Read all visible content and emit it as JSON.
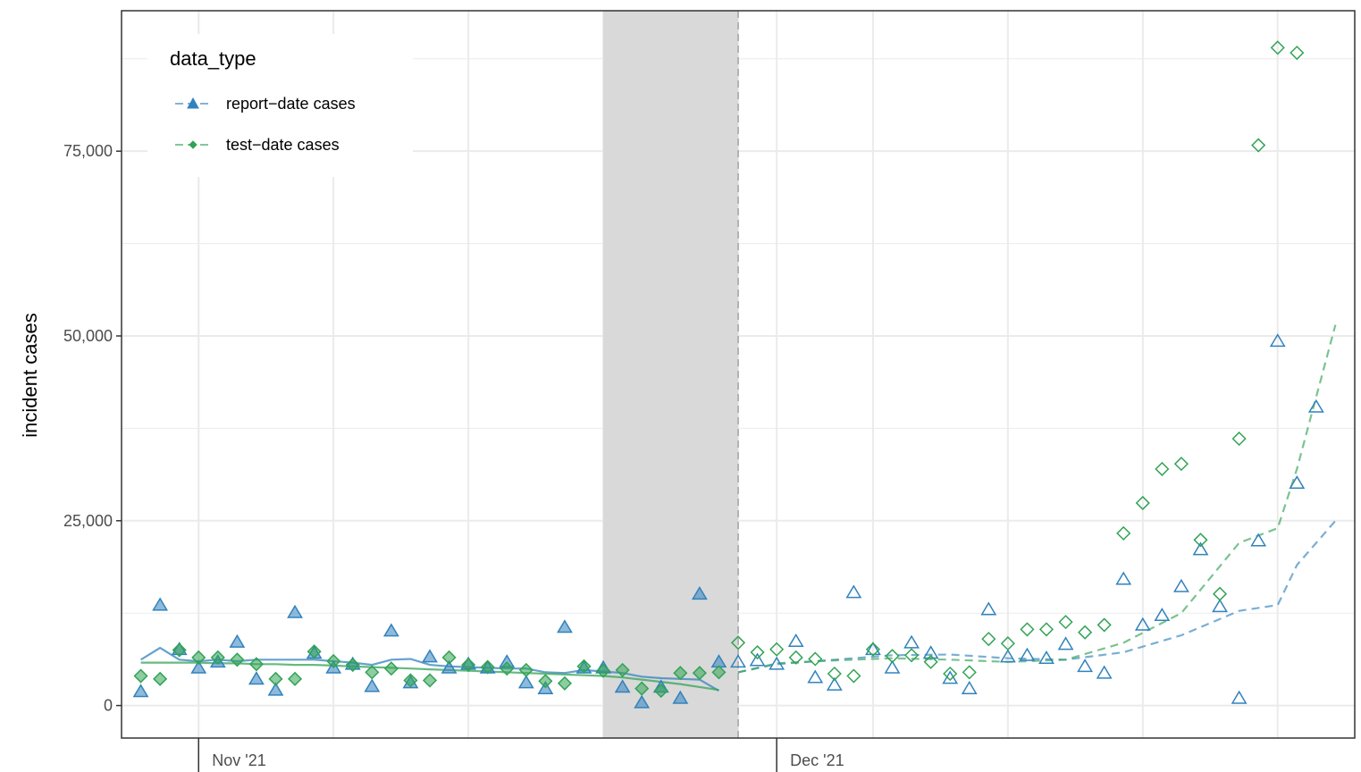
{
  "chart_data": {
    "type": "scatter",
    "title": "",
    "xlabel": "",
    "ylabel": "incident cases",
    "x_range": [
      "2021-10-28",
      "2021-12-31"
    ],
    "ylim": [
      -4400,
      94000
    ],
    "y_ticks": [
      0,
      25000,
      50000,
      75000
    ],
    "y_tick_labels": [
      "0",
      "25,000",
      "50,000",
      "75,000"
    ],
    "x_ticks": [
      "2021-11-01",
      "2021-12-01"
    ],
    "x_tick_labels": [
      "Nov '21",
      "Dec '21"
    ],
    "grid": true,
    "shaded_interval": [
      "2021-11-22",
      "2021-11-29"
    ],
    "forecast_start": "2021-11-29",
    "legend": {
      "title": "data_type",
      "position": "top-left",
      "entries": [
        "report−date cases",
        "test−date cases"
      ]
    },
    "colors": {
      "report": "#3182bd",
      "test": "#31a354"
    },
    "series": [
      {
        "name": "report−date cases",
        "marker": "triangle",
        "color": "#3182bd",
        "observed_dates": [
          "2021-10-29",
          "2021-10-30",
          "2021-10-31",
          "2021-11-01",
          "2021-11-02",
          "2021-11-03",
          "2021-11-04",
          "2021-11-05",
          "2021-11-06",
          "2021-11-07",
          "2021-11-08",
          "2021-11-09",
          "2021-11-10",
          "2021-11-11",
          "2021-11-12",
          "2021-11-13",
          "2021-11-14",
          "2021-11-15",
          "2021-11-16",
          "2021-11-17",
          "2021-11-18",
          "2021-11-19",
          "2021-11-20",
          "2021-11-21",
          "2021-11-22",
          "2021-11-23",
          "2021-11-24",
          "2021-11-25",
          "2021-11-26",
          "2021-11-27",
          "2021-11-28"
        ],
        "observed_values": [
          1800,
          13500,
          7500,
          5000,
          5800,
          8500,
          3500,
          2000,
          12500,
          7000,
          5000,
          5500,
          2500,
          10000,
          3000,
          6500,
          5000,
          5500,
          5000,
          5800,
          3000,
          2200,
          10500,
          5000,
          5000,
          2400,
          300,
          2400,
          900,
          15000,
          5800
        ],
        "observed_line": [
          6200,
          7800,
          6200,
          6000,
          6200,
          6000,
          6200,
          6200,
          6200,
          6200,
          6000,
          5800,
          5500,
          6200,
          6300,
          5500,
          5300,
          5200,
          5100,
          5000,
          5000,
          4500,
          4400,
          4800,
          4600,
          4400,
          3900,
          3700,
          3600,
          3500,
          2000
        ],
        "later_dates": [
          "2021-11-29",
          "2021-11-30",
          "2021-12-01",
          "2021-12-02",
          "2021-12-03",
          "2021-12-04",
          "2021-12-05",
          "2021-12-06",
          "2021-12-07",
          "2021-12-08",
          "2021-12-09",
          "2021-12-10",
          "2021-12-11",
          "2021-12-12",
          "2021-12-13",
          "2021-12-14",
          "2021-12-15",
          "2021-12-16",
          "2021-12-17",
          "2021-12-18",
          "2021-12-19",
          "2021-12-20",
          "2021-12-21",
          "2021-12-22",
          "2021-12-23",
          "2021-12-24",
          "2021-12-25",
          "2021-12-26",
          "2021-12-27",
          "2021-12-28",
          "2021-12-29",
          "2021-12-30"
        ],
        "later_values": [
          5800,
          6000,
          5500,
          8600,
          3700,
          2700,
          15200,
          7500,
          5000,
          8400,
          7000,
          3600,
          2200,
          12900,
          6500,
          6700,
          6300,
          8200,
          5200,
          4300,
          17000,
          10800,
          12100,
          16000,
          21000,
          13300,
          900,
          22200,
          49200,
          30000,
          40300,
          null
        ],
        "forecast_dates": [
          "2021-11-29",
          "2021-12-01",
          "2021-12-04",
          "2021-12-07",
          "2021-12-10",
          "2021-12-13",
          "2021-12-16",
          "2021-12-19",
          "2021-12-22",
          "2021-12-25",
          "2021-12-27",
          "2021-12-28",
          "2021-12-30"
        ],
        "forecast_values": [
          4500,
          5600,
          6200,
          6800,
          6900,
          6400,
          6200,
          7200,
          9500,
          12800,
          13600,
          19000,
          25000
        ]
      },
      {
        "name": "test−date cases",
        "marker": "diamond",
        "color": "#31a354",
        "observed_dates": [
          "2021-10-29",
          "2021-10-30",
          "2021-10-31",
          "2021-11-01",
          "2021-11-02",
          "2021-11-03",
          "2021-11-04",
          "2021-11-05",
          "2021-11-06",
          "2021-11-07",
          "2021-11-08",
          "2021-11-09",
          "2021-11-10",
          "2021-11-11",
          "2021-11-12",
          "2021-11-13",
          "2021-11-14",
          "2021-11-15",
          "2021-11-16",
          "2021-11-17",
          "2021-11-18",
          "2021-11-19",
          "2021-11-20",
          "2021-11-21",
          "2021-11-22",
          "2021-11-23",
          "2021-11-24",
          "2021-11-25",
          "2021-11-26",
          "2021-11-27",
          "2021-11-28"
        ],
        "observed_values": [
          4000,
          3600,
          7500,
          6500,
          6500,
          6200,
          5600,
          3600,
          3600,
          7300,
          6000,
          5500,
          4500,
          5000,
          3400,
          3400,
          6500,
          5500,
          5200,
          5000,
          4800,
          3300,
          3000,
          5300,
          4700,
          4800,
          2300,
          2000,
          4400,
          4400,
          4500
        ],
        "observed_line": [
          5800,
          5800,
          5800,
          5800,
          5700,
          5700,
          5600,
          5600,
          5500,
          5500,
          5400,
          5300,
          5200,
          5100,
          5000,
          4900,
          4800,
          4700,
          4600,
          4500,
          4400,
          4300,
          4200,
          4100,
          4000,
          3800,
          3500,
          3200,
          2900,
          2500,
          2100
        ],
        "later_dates": [
          "2021-11-29",
          "2021-11-30",
          "2021-12-01",
          "2021-12-02",
          "2021-12-03",
          "2021-12-04",
          "2021-12-05",
          "2021-12-06",
          "2021-12-07",
          "2021-12-08",
          "2021-12-09",
          "2021-12-10",
          "2021-12-11",
          "2021-12-12",
          "2021-12-13",
          "2021-12-14",
          "2021-12-15",
          "2021-12-16",
          "2021-12-17",
          "2021-12-18",
          "2021-12-19",
          "2021-12-20",
          "2021-12-21",
          "2021-12-22",
          "2021-12-23",
          "2021-12-24",
          "2021-12-25",
          "2021-12-26",
          "2021-12-27",
          "2021-12-28",
          "2021-12-29",
          "2021-12-30"
        ],
        "later_values": [
          8500,
          7200,
          7600,
          6500,
          6300,
          4300,
          4000,
          7600,
          6700,
          6800,
          5900,
          4300,
          4500,
          9000,
          8400,
          10300,
          10300,
          11300,
          9900,
          10900,
          23300,
          27400,
          32000,
          32700,
          22400,
          15100,
          36100,
          75800,
          89000,
          88300,
          null,
          null
        ],
        "forecast_dates": [
          "2021-11-29",
          "2021-12-01",
          "2021-12-04",
          "2021-12-07",
          "2021-12-10",
          "2021-12-13",
          "2021-12-16",
          "2021-12-19",
          "2021-12-22",
          "2021-12-25",
          "2021-12-27",
          "2021-12-28",
          "2021-12-30"
        ],
        "forecast_values": [
          4500,
          5700,
          6100,
          6400,
          6200,
          5900,
          6200,
          8500,
          12500,
          22000,
          24000,
          32000,
          51500
        ]
      }
    ]
  }
}
